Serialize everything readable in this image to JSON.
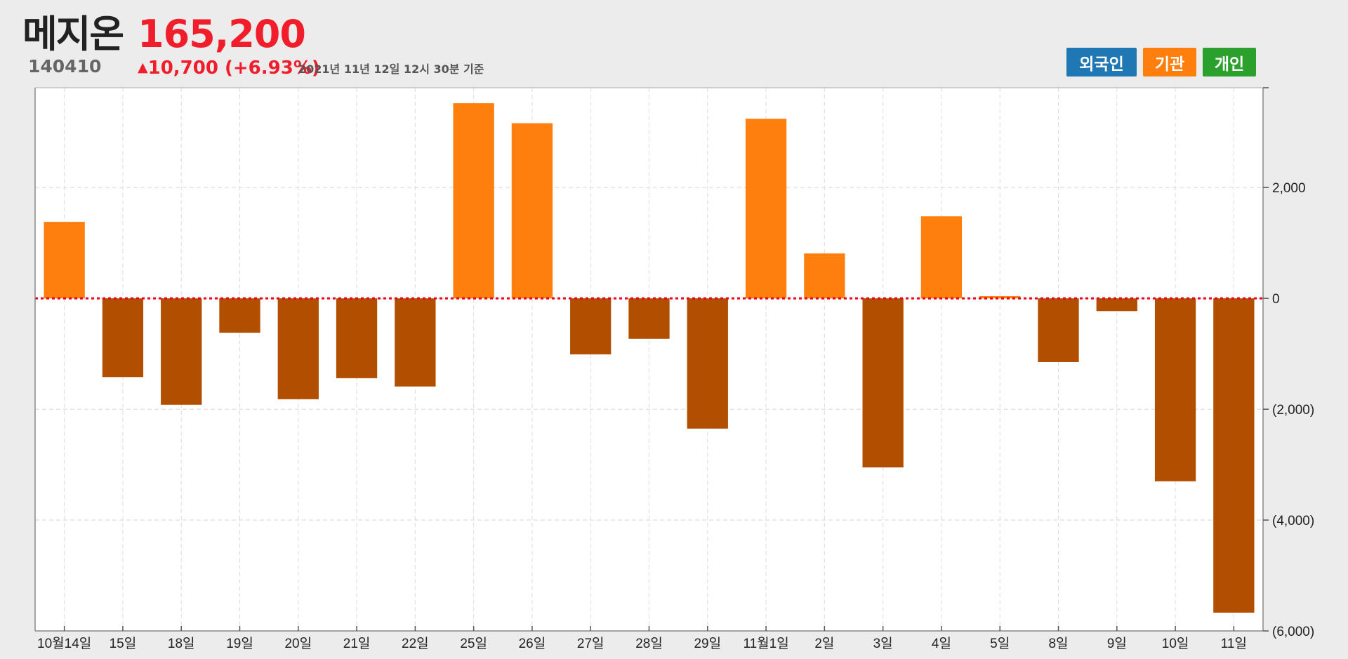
{
  "header": {
    "name": "메지온",
    "code": "140410",
    "price": "165,200",
    "change_arrow": "▲",
    "change": "10,700 (+6.93%)",
    "timestamp": "2021년 11년 12일 12시 30분 기준"
  },
  "legend": [
    {
      "label": "외국인",
      "color": "#1f77b4"
    },
    {
      "label": "기관",
      "color": "#ff7f0e"
    },
    {
      "label": "개인",
      "color": "#2ca02c"
    }
  ],
  "chart_data": {
    "type": "bar",
    "categories": [
      "10월14일",
      "15일",
      "18일",
      "19일",
      "20일",
      "21일",
      "22일",
      "25일",
      "26일",
      "27일",
      "28일",
      "29일",
      "11월1일",
      "2일",
      "3일",
      "4일",
      "5일",
      "8일",
      "9일",
      "10일",
      "11일"
    ],
    "values": [
      1380,
      -1420,
      -1920,
      -620,
      -1820,
      -1440,
      -1590,
      3520,
      3160,
      -1010,
      -730,
      -2350,
      3240,
      810,
      -3050,
      1480,
      40,
      -1150,
      -230,
      -3300,
      -5670
    ],
    "positive_color": "#ff7f0e",
    "negative_color": "#b14e00",
    "ylim": [
      -6000,
      3800
    ],
    "yticks": [
      2000,
      0,
      -2000,
      -4000,
      -6000
    ],
    "ytick_labels": [
      "2,000",
      "0",
      "(2,000)",
      "(4,000)",
      "(6,000)"
    ],
    "zero_line_color": "#e8001c",
    "y_axis_position": "right",
    "grid": true
  }
}
